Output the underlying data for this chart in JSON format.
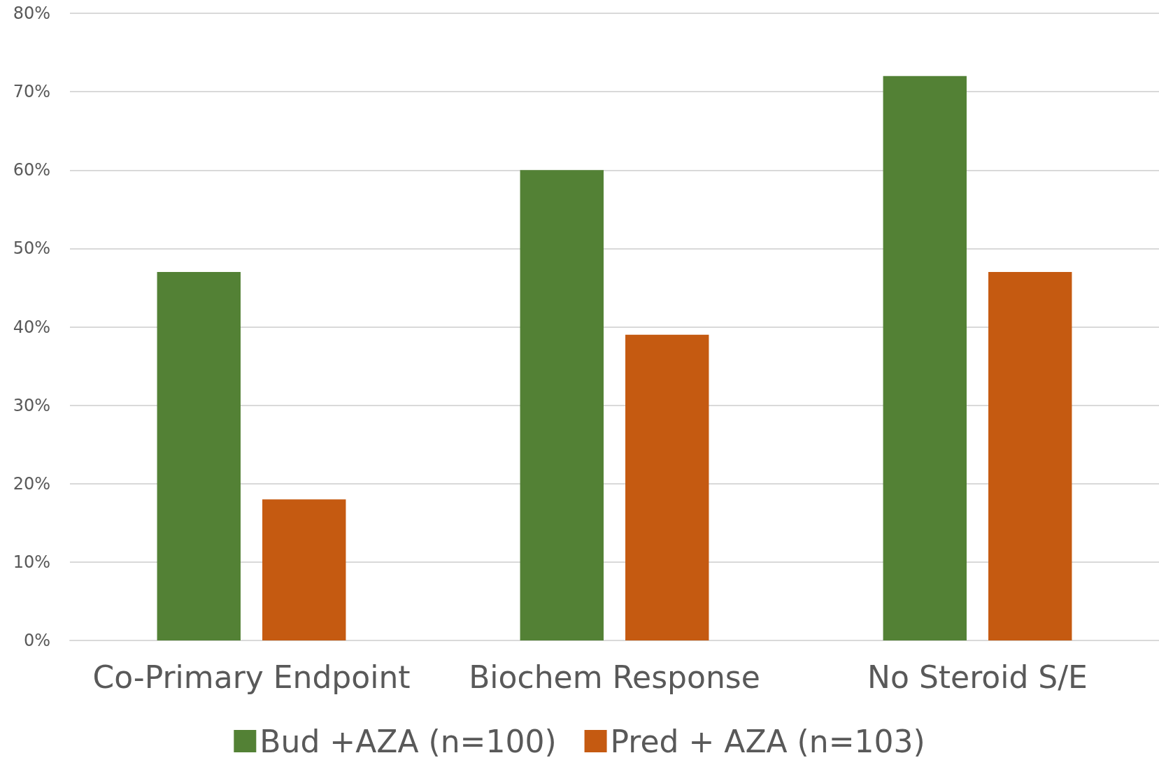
{
  "chart_data": {
    "type": "bar",
    "categories": [
      "Co-Primary Endpoint",
      "Biochem Response",
      "No Steroid S/E"
    ],
    "series": [
      {
        "name": "Bud +AZA (n=100)",
        "color": "#538135",
        "values": [
          47,
          60,
          72
        ]
      },
      {
        "name": "Pred + AZA (n=103)",
        "color": "#c55a11",
        "values": [
          18,
          39,
          47
        ]
      }
    ],
    "ylim": [
      0,
      80
    ],
    "yticks": [
      {
        "value": 0,
        "label": "0%"
      },
      {
        "value": 10,
        "label": "10%"
      },
      {
        "value": 20,
        "label": "20%"
      },
      {
        "value": 30,
        "label": "30%"
      },
      {
        "value": 40,
        "label": "40%"
      },
      {
        "value": 50,
        "label": "50%"
      },
      {
        "value": 60,
        "label": "60%"
      },
      {
        "value": 70,
        "label": "70%"
      },
      {
        "value": 80,
        "label": "80%"
      }
    ],
    "grid": "y",
    "legend": "bottom"
  }
}
